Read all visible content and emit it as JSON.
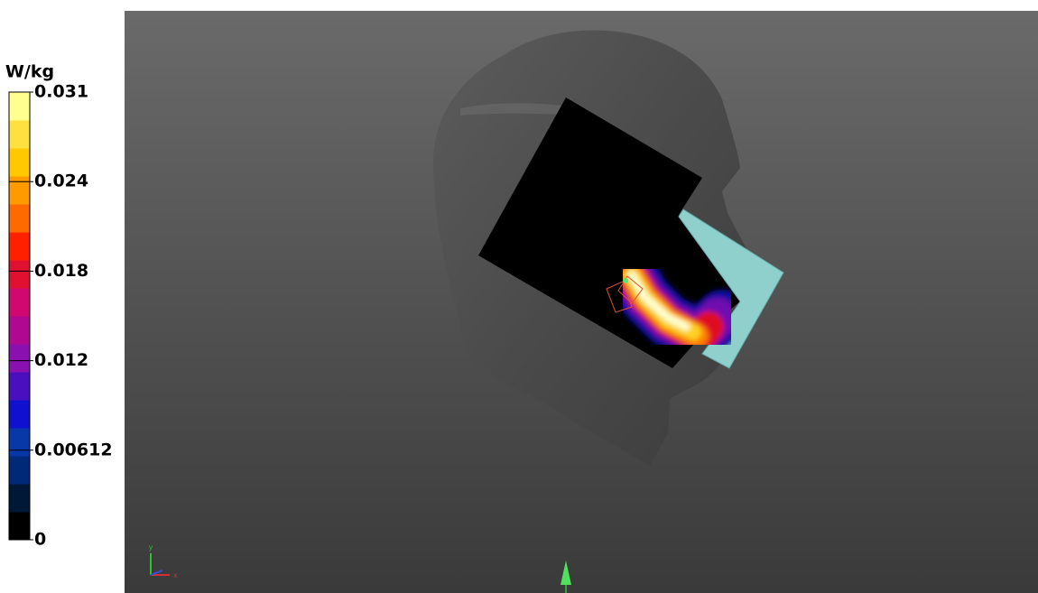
{
  "colorbar": {
    "unit": "W/kg",
    "ticks": [
      0.031,
      0.024,
      0.018,
      0.012,
      0.00612,
      0
    ]
  },
  "axes": {
    "y": "y",
    "x": "x"
  }
}
